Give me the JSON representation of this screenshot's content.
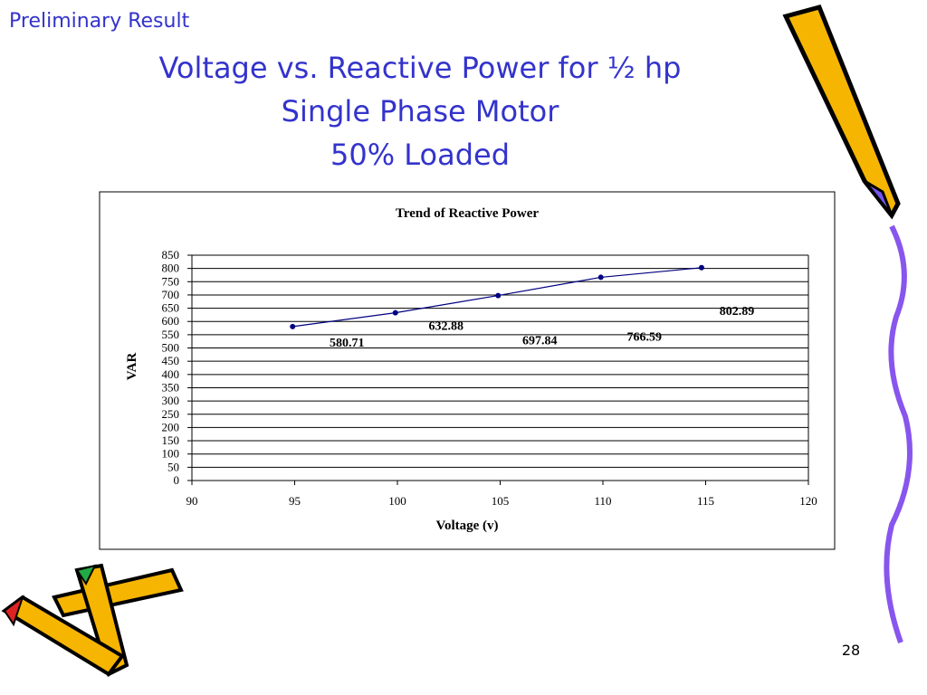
{
  "header": "Preliminary Result",
  "title": [
    "Voltage vs. Reactive Power for ½ hp",
    "Single Phase Motor",
    "50% Loaded"
  ],
  "page_number": "28",
  "chart_data": {
    "type": "line",
    "title": "Trend of Reactive Power",
    "x_label": "Voltage (v)",
    "y_label": "VAR",
    "x": [
      94.9,
      99.9,
      104.9,
      109.9,
      114.8
    ],
    "values": [
      580.71,
      632.88,
      697.84,
      766.59,
      802.89
    ],
    "color": "#000080",
    "xlim": [
      90,
      120
    ],
    "xticks": [
      90,
      95,
      100,
      105,
      110,
      115,
      120
    ],
    "ylim": [
      0,
      850
    ],
    "yticks": [
      0,
      50,
      100,
      150,
      200,
      250,
      300,
      350,
      400,
      450,
      500,
      550,
      600,
      650,
      700,
      750,
      800,
      850
    ],
    "grid": true
  }
}
